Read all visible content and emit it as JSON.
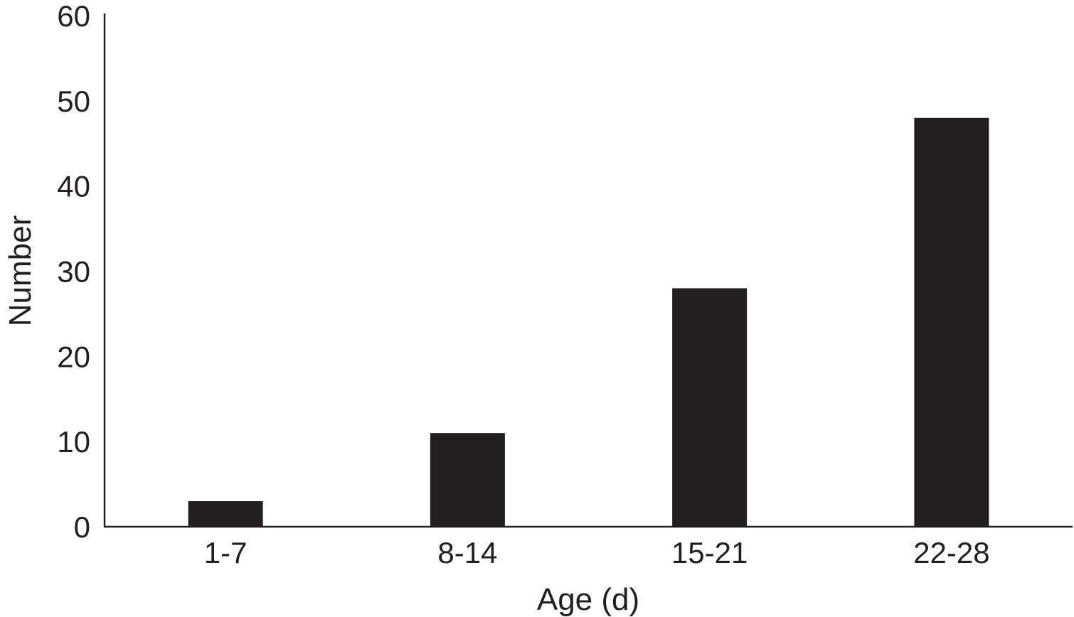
{
  "chart_data": {
    "type": "bar",
    "categories": [
      "1-7",
      "8-14",
      "15-21",
      "22-28"
    ],
    "values": [
      3,
      11,
      28,
      48
    ],
    "title": "",
    "xlabel": "Age (d)",
    "ylabel": "Number",
    "ylim": [
      0,
      60
    ],
    "yticks": [
      "0",
      "10",
      "20",
      "30",
      "40",
      "50",
      "60"
    ],
    "grid": false,
    "bar_color": "#231f20"
  }
}
